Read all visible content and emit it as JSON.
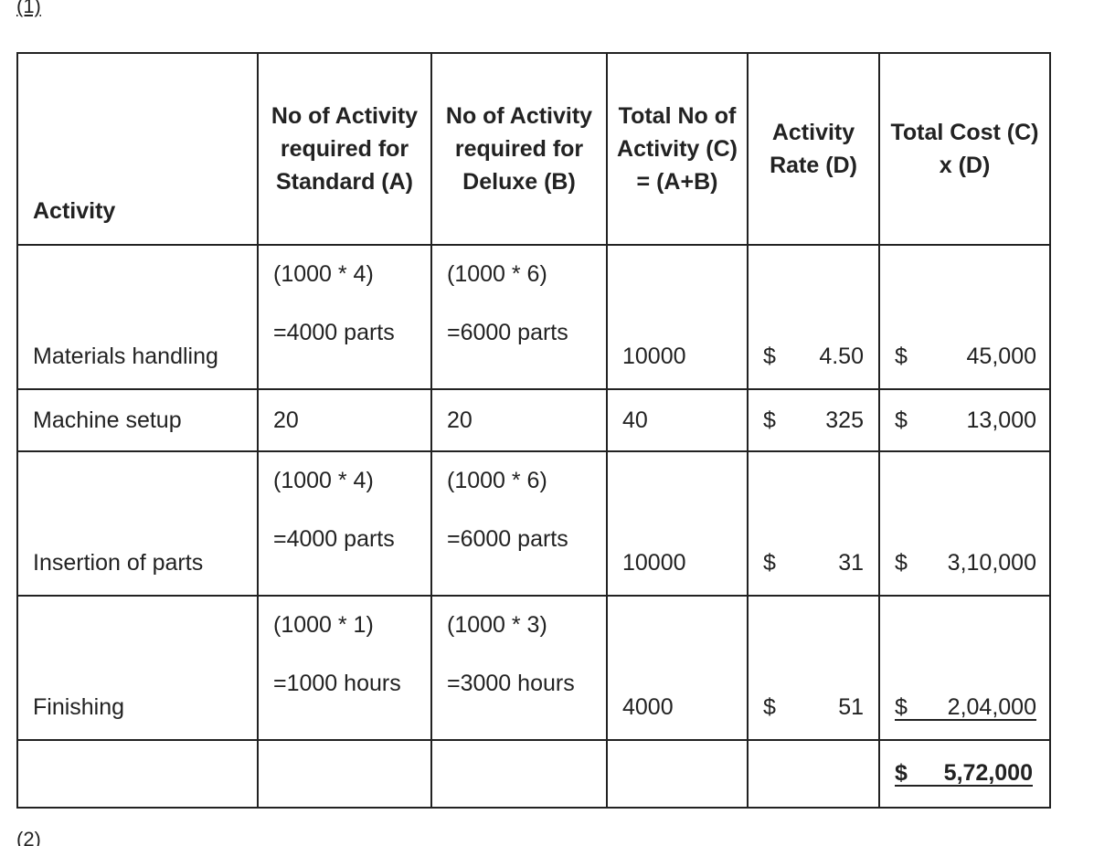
{
  "labels": {
    "part1": "(1)",
    "part2": "(2)"
  },
  "table": {
    "header": [
      "Activity",
      "No of Activity required for Standard (A)",
      "No of Activity required for Deluxe (B)",
      "Total No of Activity (C) = (A+B)",
      "Activity Rate (D)",
      "Total Cost (C) x (D)"
    ],
    "rows": [
      {
        "activity": "Materials handling",
        "a": [
          "(1000 * 4)",
          "=4000 parts"
        ],
        "b": [
          "(1000 * 6)",
          "=6000 parts"
        ],
        "total": "10000",
        "rate_symbol": "$",
        "rate": "4.50",
        "cost_symbol": "$",
        "cost": "45,000"
      },
      {
        "activity": "Machine setup",
        "a": [
          "20"
        ],
        "b": [
          "20"
        ],
        "total": "40",
        "rate_symbol": "$",
        "rate": "325",
        "cost_symbol": "$",
        "cost": "13,000"
      },
      {
        "activity": "Insertion of parts",
        "a": [
          "(1000 * 4)",
          "=4000 parts"
        ],
        "b": [
          "(1000 * 6)",
          "=6000 parts"
        ],
        "total": "10000",
        "rate_symbol": "$",
        "rate": "31",
        "cost_symbol": "$",
        "cost": "3,10,000"
      },
      {
        "activity": "Finishing",
        "a": [
          "(1000 * 1)",
          "=1000 hours"
        ],
        "b": [
          "(1000 * 3)",
          "=3000 hours"
        ],
        "total": "4000",
        "rate_symbol": "$",
        "rate": "51",
        "cost_symbol": "$",
        "cost": "2,04,000"
      }
    ],
    "total": {
      "symbol": "$",
      "amount": "5,72,000"
    }
  }
}
